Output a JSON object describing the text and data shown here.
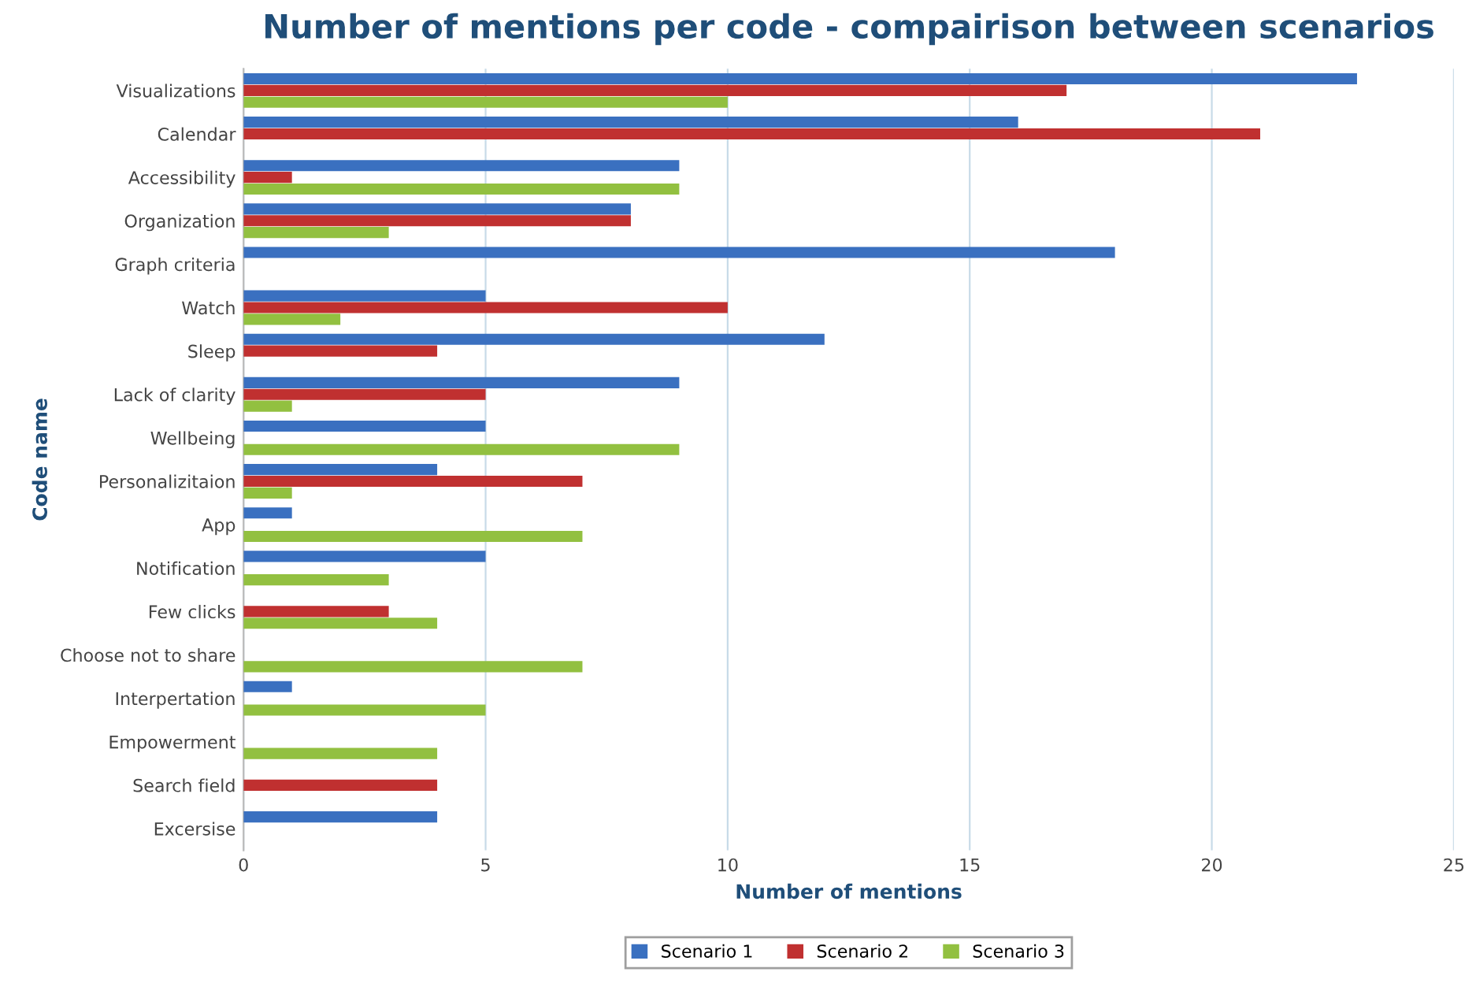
{
  "chart_data": {
    "type": "bar",
    "orientation": "horizontal",
    "title": "Number of mentions per code - compairison between scenarios",
    "xlabel": "Number of mentions",
    "ylabel": "Code name",
    "categories": [
      "Visualizations",
      "Calendar",
      "Accessibility",
      "Organization",
      "Graph criteria",
      "Watch",
      "Sleep",
      "Lack of clarity",
      "Wellbeing",
      "Personalizitaion",
      "App",
      "Notification",
      "Few clicks",
      "Choose not to share",
      "Interpertation",
      "Empowerment",
      "Search field",
      "Excersise"
    ],
    "series": [
      {
        "name": "Scenario 1",
        "color": "#3a70c0",
        "values": [
          23,
          16,
          9,
          8,
          18,
          5,
          12,
          9,
          5,
          4,
          1,
          5,
          null,
          null,
          1,
          null,
          null,
          4
        ]
      },
      {
        "name": "Scenario 2",
        "color": "#c03030",
        "values": [
          17,
          21,
          1,
          8,
          null,
          10,
          4,
          5,
          null,
          7,
          null,
          null,
          3,
          null,
          null,
          null,
          4,
          null
        ]
      },
      {
        "name": "Scenario 3",
        "color": "#92c040",
        "values": [
          10,
          null,
          9,
          3,
          null,
          2,
          null,
          1,
          9,
          1,
          7,
          3,
          4,
          7,
          5,
          4,
          null,
          null
        ]
      }
    ],
    "xlim": [
      0,
      25
    ],
    "xticks": [
      0,
      5,
      10,
      15,
      20,
      25
    ],
    "grid": "x",
    "legend": "bottom"
  }
}
